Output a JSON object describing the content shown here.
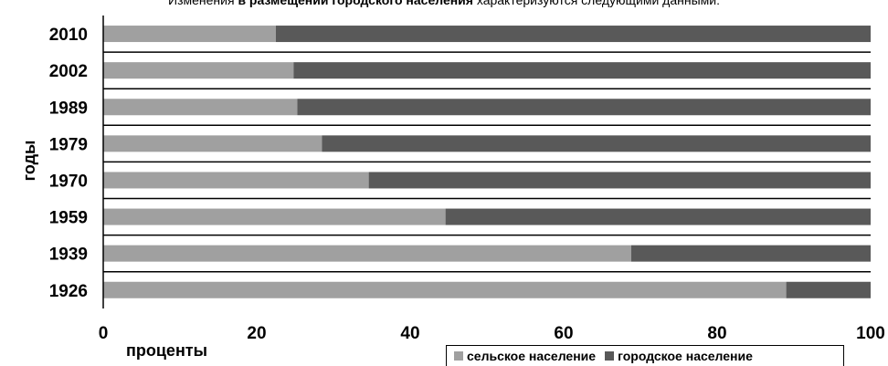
{
  "caption": {
    "part1": "Изменения",
    "part2": "в размещении городского населения",
    "part3": "характеризуются следующими данными:"
  },
  "colors": {
    "rural": "#a0a0a0",
    "urban": "#595959"
  },
  "chart_data": {
    "type": "bar",
    "orientation": "horizontal",
    "stacked": true,
    "categories": [
      "2010",
      "2002",
      "1989",
      "1979",
      "1970",
      "1959",
      "1939",
      "1926"
    ],
    "series": [
      {
        "name": "сельское население",
        "values": [
          22.5,
          24.8,
          25.3,
          28.5,
          34.6,
          44.6,
          68.8,
          89.0
        ]
      },
      {
        "name": "городское население",
        "values": [
          77.5,
          75.2,
          74.7,
          71.5,
          65.4,
          55.4,
          31.2,
          11.0
        ]
      }
    ],
    "xlabel": "проценты",
    "ylabel": "годы",
    "xlim": [
      0,
      100
    ],
    "xticks": [
      "0",
      "20",
      "40",
      "60",
      "80",
      "100"
    ],
    "legend_position": "bottom-right"
  }
}
